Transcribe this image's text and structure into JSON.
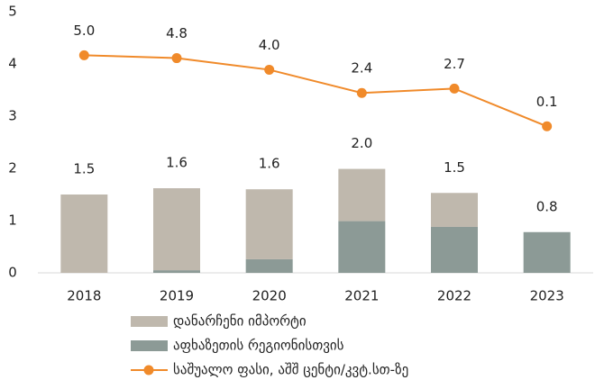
{
  "chart_data": {
    "type": "bar",
    "categories": [
      "2018",
      "2019",
      "2020",
      "2021",
      "2022",
      "2023"
    ],
    "series": [
      {
        "name": "დანარჩენი იმპორტი",
        "type": "bar",
        "color": "#bfb8ad",
        "values": [
          1.5,
          1.57,
          1.34,
          1.0,
          0.65,
          0
        ]
      },
      {
        "name": "აფხაზეთის რეგიონისთვის",
        "type": "bar",
        "color": "#8c9a96",
        "values": [
          0,
          0.05,
          0.26,
          0.99,
          0.88,
          0.78
        ]
      },
      {
        "name": "საშუალო ფასი, აშშ ცენტი/კვტ.სთ-ზე",
        "type": "line",
        "axis": "y2",
        "color": "#f08a2a",
        "values": [
          5.0,
          4.8,
          4.0,
          2.4,
          2.7,
          0.1
        ],
        "value_labels": [
          "5.0",
          "4.8",
          "4.0",
          "2.4",
          "2.7",
          "0.1"
        ]
      }
    ],
    "total_labels": [
      "1.5",
      "1.6",
      "1.6",
      "2.0",
      "1.5",
      "0.8"
    ],
    "ylim": [
      0,
      5
    ],
    "yticks": [
      0,
      1,
      2,
      3,
      4,
      5
    ],
    "y2lim": [
      -10,
      8
    ],
    "grid": false
  }
}
